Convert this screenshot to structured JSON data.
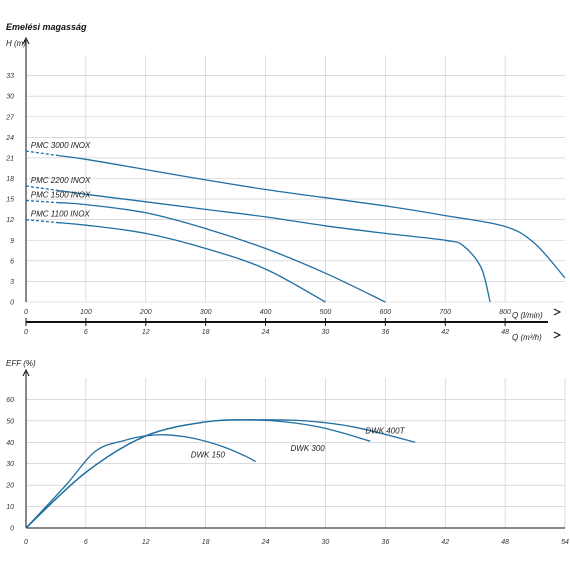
{
  "chart_data": [
    {
      "type": "line",
      "title": "Emelési magasság",
      "ylabel": "H (m)",
      "xlabel": "Q (l/min)",
      "xlabel2": "Q (m³/h)",
      "xlim": [
        0,
        900
      ],
      "ylim": [
        0,
        36
      ],
      "xticks": [
        "0",
        "100",
        "200",
        "300",
        "400",
        "500",
        "600",
        "700",
        "800"
      ],
      "xticks2": [
        "0",
        "6",
        "12",
        "18",
        "24",
        "30",
        "36",
        "42",
        "48"
      ],
      "yticks": [
        "0",
        "3",
        "6",
        "9",
        "12",
        "15",
        "18",
        "21",
        "24",
        "27",
        "30",
        "33"
      ],
      "grid": true,
      "series": [
        {
          "name": "PMC 3000 INOX",
          "x": [
            0,
            100,
            200,
            300,
            400,
            500,
            600,
            700,
            800,
            850,
            900
          ],
          "y": [
            22,
            20.8,
            19.3,
            17.8,
            16.4,
            15.2,
            14.0,
            12.6,
            11.0,
            8.5,
            3.5
          ]
        },
        {
          "name": "PMC 2200 INOX",
          "x": [
            0,
            100,
            200,
            300,
            400,
            500,
            600,
            700,
            730,
            760,
            775
          ],
          "y": [
            16.9,
            15.7,
            14.6,
            13.5,
            12.4,
            11.1,
            10.0,
            9.0,
            8.2,
            5.0,
            0
          ]
        },
        {
          "name": "PMC 1500 INOX",
          "x": [
            0,
            100,
            200,
            300,
            400,
            500,
            600
          ],
          "y": [
            14.8,
            14.2,
            13.0,
            10.7,
            7.8,
            4.2,
            0
          ]
        },
        {
          "name": "PMC 1100 INOX",
          "x": [
            0,
            100,
            200,
            300,
            400,
            500
          ],
          "y": [
            12.0,
            11.2,
            10.0,
            7.8,
            4.8,
            0
          ]
        }
      ]
    },
    {
      "type": "line",
      "ylabel": "EFF (%)",
      "xlim": [
        0,
        54
      ],
      "ylim": [
        0,
        70
      ],
      "xticks": [
        "0",
        "6",
        "12",
        "18",
        "24",
        "30",
        "36",
        "42",
        "48",
        "54"
      ],
      "yticks": [
        "0",
        "10",
        "20",
        "30",
        "40",
        "50",
        "60"
      ],
      "grid": true,
      "series": [
        {
          "name": "DWK 150",
          "x": [
            0,
            4,
            7,
            10,
            12,
            14,
            16,
            18,
            20,
            22,
            23
          ],
          "y": [
            0,
            20,
            36,
            41,
            43,
            43.5,
            42.5,
            40.5,
            37.5,
            33.5,
            31
          ]
        },
        {
          "name": "DWK 300",
          "x": [
            0,
            6,
            12,
            18,
            22,
            26,
            30,
            34.5
          ],
          "y": [
            0,
            26,
            43,
            49.5,
            50.5,
            49.5,
            46.5,
            40.5
          ]
        },
        {
          "name": "DWK 400T",
          "x": [
            0,
            6,
            12,
            18,
            23,
            28,
            33,
            39
          ],
          "y": [
            0,
            26,
            43,
            49.5,
            50.5,
            50,
            47,
            40
          ]
        }
      ]
    }
  ]
}
